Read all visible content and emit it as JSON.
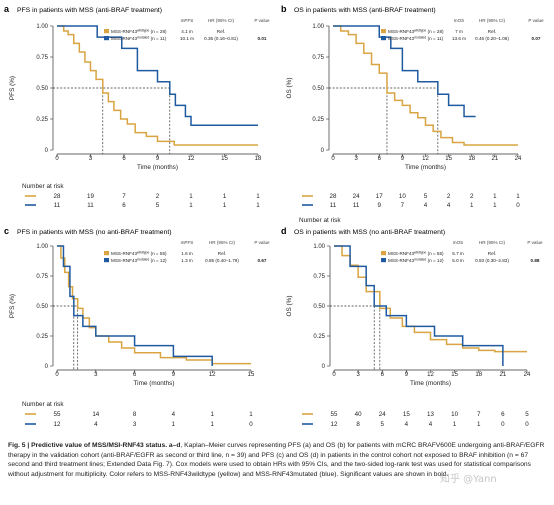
{
  "colors": {
    "wildtype": "#d9a441",
    "mutated": "#1f5aa0"
  },
  "panels": [
    {
      "id": "a",
      "label": "a",
      "title": "PFS in patients with MSS (anti-BRAF treatment)",
      "ylabel": "PFS (%)",
      "xlabel": "Time (months)",
      "table": {
        "headers": [
          "mPFS",
          "HR (95% CI)",
          "P value"
        ],
        "rows": [
          {
            "label": "MSS-RNF43",
            "sup": "wildtype",
            "n": "(n = 28)",
            "median": "4.1 m",
            "hr": "Ref.",
            "p": ""
          },
          {
            "label": "MSS-RNF43",
            "sup": "mutated",
            "n": "(n = 11)",
            "median": "10.1 m",
            "hr": "0.36 (0.16–0.81)",
            "p": "0.01"
          }
        ]
      },
      "risk_title": "Number at risk",
      "risk": {
        "wildtype": [
          "28",
          "19",
          "7",
          "2",
          "1",
          "1",
          "1"
        ],
        "mutated": [
          "11",
          "11",
          "6",
          "5",
          "1",
          "1",
          "1"
        ]
      }
    },
    {
      "id": "b",
      "label": "b",
      "title": "OS in patients with MSS (anti-BRAF treatment)",
      "ylabel": "OS (%)",
      "xlabel": "Time (months)",
      "table": {
        "headers": [
          "mOS",
          "HR (95% CI)",
          "P value"
        ],
        "rows": [
          {
            "label": "MSS-RNF43",
            "sup": "wildtype",
            "n": "(n = 28)",
            "median": "7 m",
            "hr": "Ref.",
            "p": ""
          },
          {
            "label": "MSS-RNF43",
            "sup": "mutated",
            "n": "(n = 11)",
            "median": "13.6 m",
            "hr": "0.46 (0.20–1.06)",
            "p": "0.07"
          }
        ]
      },
      "risk_title": "",
      "risk": {
        "wildtype": [
          "28",
          "24",
          "17",
          "10",
          "5",
          "2",
          "2",
          "1",
          "1"
        ],
        "mutated": [
          "11",
          "11",
          "9",
          "7",
          "4",
          "4",
          "1",
          "1",
          "0"
        ]
      }
    },
    {
      "id": "c",
      "label": "c",
      "title": "PFS in patients with MSS (no anti-BRAF treatment)",
      "ylabel": "PFS (%)",
      "xlabel": "Time (months)",
      "table": {
        "headers": [
          "mPFS",
          "HR (95% CI)",
          "P value"
        ],
        "rows": [
          {
            "label": "MSS-RNF43",
            "sup": "wildtype",
            "n": "(n = 55)",
            "median": "1.6 m",
            "hr": "Ref.",
            "p": ""
          },
          {
            "label": "MSS-RNF43",
            "sup": "mutated",
            "n": "(n = 12)",
            "median": "1.3 m",
            "hr": "0.85 (0.40–1.79)",
            "p": "0.67"
          }
        ]
      },
      "risk_title": "Number at risk",
      "risk": {
        "wildtype": [
          "55",
          "14",
          "8",
          "4",
          "1",
          "1"
        ],
        "mutated": [
          "12",
          "4",
          "3",
          "1",
          "1",
          "0"
        ]
      }
    },
    {
      "id": "d",
      "label": "d",
      "title": "OS in patients with MSS (no anti-BRAF treatment)",
      "ylabel": "OS (%)",
      "xlabel": "Time (months)",
      "table": {
        "headers": [
          "mOS",
          "HR (95% CI)",
          "P value"
        ],
        "rows": [
          {
            "label": "MSS-RNF43",
            "sup": "wildtype",
            "n": "(n = 55)",
            "median": "5.7 m",
            "hr": "Ref.",
            "p": ""
          },
          {
            "label": "MSS-RNF43",
            "sup": "mutated",
            "n": "(n = 12)",
            "median": "5.0 m",
            "hr": "0.93 (0.30–2.83)",
            "p": "0.88"
          }
        ]
      },
      "risk_title": "Number at risk",
      "risk": {
        "wildtype": [
          "55",
          "40",
          "24",
          "15",
          "13",
          "10",
          "7",
          "6",
          "5"
        ],
        "mutated": [
          "12",
          "8",
          "5",
          "4",
          "4",
          "1",
          "1",
          "0",
          "0"
        ]
      }
    }
  ],
  "chart_data": [
    {
      "type": "line",
      "panel": "a",
      "title": "PFS in patients with MSS (anti-BRAF treatment)",
      "xlabel": "Time (months)",
      "ylabel": "PFS (%)",
      "xlim": [
        0,
        18
      ],
      "ylim": [
        0,
        1
      ],
      "xticks": [
        0,
        3,
        6,
        9,
        12,
        15,
        18
      ],
      "yticks": [
        0,
        0.25,
        0.5,
        0.75,
        1.0
      ],
      "medians": [
        4.1,
        10.1
      ],
      "series": [
        {
          "name": "MSS-RNF43 wildtype",
          "color": "#d9a441",
          "points": [
            [
              0,
              1.0
            ],
            [
              0.6,
              0.96
            ],
            [
              1.0,
              0.93
            ],
            [
              1.5,
              0.86
            ],
            [
              2.0,
              0.79
            ],
            [
              2.5,
              0.71
            ],
            [
              3.0,
              0.64
            ],
            [
              3.5,
              0.57
            ],
            [
              4.1,
              0.46
            ],
            [
              4.6,
              0.39
            ],
            [
              5.1,
              0.32
            ],
            [
              5.7,
              0.25
            ],
            [
              6.3,
              0.21
            ],
            [
              7.0,
              0.14
            ],
            [
              8.0,
              0.11
            ],
            [
              9.0,
              0.07
            ],
            [
              10.5,
              0.04
            ],
            [
              18,
              0.04
            ]
          ]
        },
        {
          "name": "MSS-RNF43 mutated",
          "color": "#1f5aa0",
          "points": [
            [
              0,
              1.0
            ],
            [
              3.6,
              1.0
            ],
            [
              3.6,
              0.91
            ],
            [
              5.8,
              0.82
            ],
            [
              7.2,
              0.64
            ],
            [
              9.0,
              0.55
            ],
            [
              10.1,
              0.45
            ],
            [
              10.6,
              0.36
            ],
            [
              11.5,
              0.27
            ],
            [
              12.0,
              0.2
            ],
            [
              18,
              0.2
            ]
          ]
        }
      ]
    },
    {
      "type": "line",
      "panel": "b",
      "title": "OS in patients with MSS (anti-BRAF treatment)",
      "xlabel": "Time (months)",
      "ylabel": "OS (%)",
      "xlim": [
        0,
        24
      ],
      "ylim": [
        0,
        1
      ],
      "xticks": [
        0,
        3,
        6,
        9,
        12,
        15,
        18,
        21,
        24
      ],
      "yticks": [
        0,
        0.25,
        0.5,
        0.75,
        1.0
      ],
      "medians": [
        7.0,
        13.6
      ],
      "series": [
        {
          "name": "MSS-RNF43 wildtype",
          "color": "#d9a441",
          "points": [
            [
              0,
              1.0
            ],
            [
              1.0,
              0.96
            ],
            [
              2.0,
              0.93
            ],
            [
              3.0,
              0.86
            ],
            [
              4.0,
              0.78
            ],
            [
              5.0,
              0.69
            ],
            [
              6.0,
              0.62
            ],
            [
              7.0,
              0.46
            ],
            [
              8.0,
              0.4
            ],
            [
              9.0,
              0.36
            ],
            [
              10.0,
              0.3
            ],
            [
              11.0,
              0.26
            ],
            [
              12.0,
              0.2
            ],
            [
              13.0,
              0.15
            ],
            [
              14.0,
              0.1
            ],
            [
              15.5,
              0.06
            ],
            [
              17.0,
              0.04
            ],
            [
              24,
              0.04
            ]
          ]
        },
        {
          "name": "MSS-RNF43 mutated",
          "color": "#1f5aa0",
          "points": [
            [
              0,
              1.0
            ],
            [
              6.0,
              1.0
            ],
            [
              6.0,
              0.91
            ],
            [
              7.5,
              0.82
            ],
            [
              9.0,
              0.64
            ],
            [
              11.0,
              0.55
            ],
            [
              13.6,
              0.45
            ],
            [
              15.0,
              0.36
            ],
            [
              17.0,
              0.27
            ],
            [
              18.5,
              0.27
            ]
          ]
        }
      ]
    },
    {
      "type": "line",
      "panel": "c",
      "title": "PFS in patients with MSS (no anti-BRAF treatment)",
      "xlabel": "Time (months)",
      "ylabel": "PFS (%)",
      "xlim": [
        0,
        15
      ],
      "ylim": [
        0,
        1
      ],
      "xticks": [
        0,
        3,
        6,
        9,
        12,
        15
      ],
      "yticks": [
        0,
        0.25,
        0.5,
        0.75,
        1.0
      ],
      "medians": [
        1.6,
        1.3
      ],
      "series": [
        {
          "name": "MSS-RNF43 wildtype",
          "color": "#d9a441",
          "points": [
            [
              0,
              1.0
            ],
            [
              0.3,
              0.9
            ],
            [
              0.6,
              0.78
            ],
            [
              0.9,
              0.66
            ],
            [
              1.2,
              0.56
            ],
            [
              1.6,
              0.48
            ],
            [
              2.0,
              0.4
            ],
            [
              2.5,
              0.32
            ],
            [
              3.0,
              0.25
            ],
            [
              4.0,
              0.2
            ],
            [
              5.0,
              0.15
            ],
            [
              6.0,
              0.11
            ],
            [
              8.0,
              0.07
            ],
            [
              10.0,
              0.05
            ],
            [
              12.0,
              0.02
            ],
            [
              15,
              0.02
            ]
          ]
        },
        {
          "name": "MSS-RNF43 mutated",
          "color": "#1f5aa0",
          "points": [
            [
              0,
              1.0
            ],
            [
              0.5,
              0.83
            ],
            [
              1.0,
              0.58
            ],
            [
              1.3,
              0.42
            ],
            [
              2.0,
              0.33
            ],
            [
              3.0,
              0.25
            ],
            [
              6.0,
              0.17
            ],
            [
              9.0,
              0.08
            ],
            [
              12.0,
              0.0
            ]
          ]
        }
      ]
    },
    {
      "type": "line",
      "panel": "d",
      "title": "OS in patients with MSS (no anti-BRAF treatment)",
      "xlabel": "Time (months)",
      "ylabel": "OS (%)",
      "xlim": [
        0,
        24
      ],
      "ylim": [
        0,
        1
      ],
      "xticks": [
        0,
        3,
        6,
        9,
        12,
        15,
        18,
        21,
        24
      ],
      "yticks": [
        0,
        0.25,
        0.5,
        0.75,
        1.0
      ],
      "medians": [
        5.7,
        5.0
      ],
      "series": [
        {
          "name": "MSS-RNF43 wildtype",
          "color": "#d9a441",
          "points": [
            [
              0,
              1.0
            ],
            [
              1.0,
              0.92
            ],
            [
              2.0,
              0.84
            ],
            [
              3.0,
              0.74
            ],
            [
              4.0,
              0.62
            ],
            [
              5.7,
              0.48
            ],
            [
              7.0,
              0.4
            ],
            [
              8.5,
              0.33
            ],
            [
              10.0,
              0.28
            ],
            [
              12.0,
              0.22
            ],
            [
              14.0,
              0.18
            ],
            [
              16.0,
              0.15
            ],
            [
              18.0,
              0.13
            ],
            [
              20.0,
              0.12
            ],
            [
              24,
              0.12
            ]
          ]
        },
        {
          "name": "MSS-RNF43 mutated",
          "color": "#1f5aa0",
          "points": [
            [
              0,
              1.0
            ],
            [
              2.0,
              0.83
            ],
            [
              4.0,
              0.67
            ],
            [
              5.0,
              0.5
            ],
            [
              6.5,
              0.42
            ],
            [
              9.0,
              0.33
            ],
            [
              12.5,
              0.25
            ],
            [
              16.0,
              0.17
            ],
            [
              21.0,
              0.0
            ]
          ]
        }
      ]
    }
  ],
  "caption": {
    "fig": "Fig. 5 | ",
    "bold_title": "Predictive value of MSS/MSI-RNF43 status. a–d",
    "text": ", Kaplan–Meier curves representing PFS (a) and OS (b) for patients with mCRC BRAFV600E undergoing anti-BRAF/EGFR therapy in the validation cohort (anti-BRAF/EGFR as second or third line, n = 39) and PFS (c) and OS (d) in patients in the control cohort not exposed to BRAF inhibition (n = 67 second and third treatment lines; Extended Data Fig. 7). Cox models were used to obtain HRs with 95% CIs, and the two-sided log-rank test was used for statistical comparisons without adjustment for multiplicity. Color refers to MSS-RNF43wildtype (yellow) and MSS-RNF43mutated (blue). Significant values are shown in bold."
  },
  "watermark": "知乎 @Yann"
}
